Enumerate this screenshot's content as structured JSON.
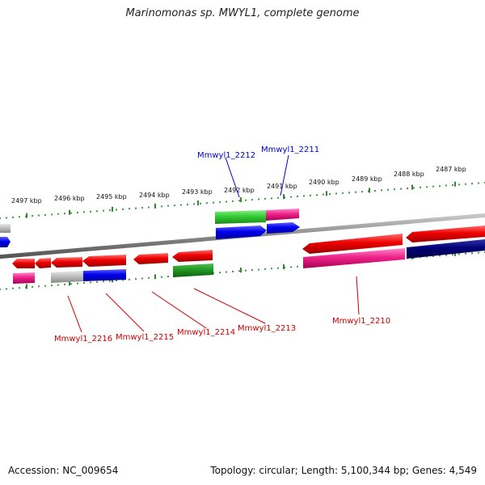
{
  "title": "Marinomonas sp. MWYL1, complete genome",
  "footer": {
    "accession": "Accession: NC_009654",
    "summary": "Topology: circular; Length: 5,100,344 bp; Genes: 4,549"
  },
  "colors": {
    "forward_label": "#0000cc",
    "reverse_label": "#cc0000",
    "tick": "#1a7a1a",
    "backbone": "#808080",
    "cds": "#ee0000",
    "gene_blue": "#0000ee",
    "gene_green": "#33cc33",
    "gene_pink": "#ee2288",
    "gene_gray": "#bbbbbb",
    "gene_navy": "#000077",
    "gene_darkgreen": "#229922"
  },
  "ticks": [
    "2497 kbp",
    "2496 kbp",
    "2495 kbp",
    "2494 kbp",
    "2493 kbp",
    "2492 kbp",
    "2491 kbp",
    "2490 kbp",
    "2489 kbp",
    "2488 kbp",
    "2487 kbp"
  ],
  "gene_labels": [
    {
      "text": "Mmwyl1_2212",
      "strand": "forward"
    },
    {
      "text": "Mmwyl1_2211",
      "strand": "forward"
    },
    {
      "text": "Mmwyl1_2216",
      "strand": "reverse"
    },
    {
      "text": "Mmwyl1_2215",
      "strand": "reverse"
    },
    {
      "text": "Mmwyl1_2214",
      "strand": "reverse"
    },
    {
      "text": "Mmwyl1_2213",
      "strand": "reverse"
    },
    {
      "text": "Mmwyl1_2210",
      "strand": "reverse"
    }
  ]
}
